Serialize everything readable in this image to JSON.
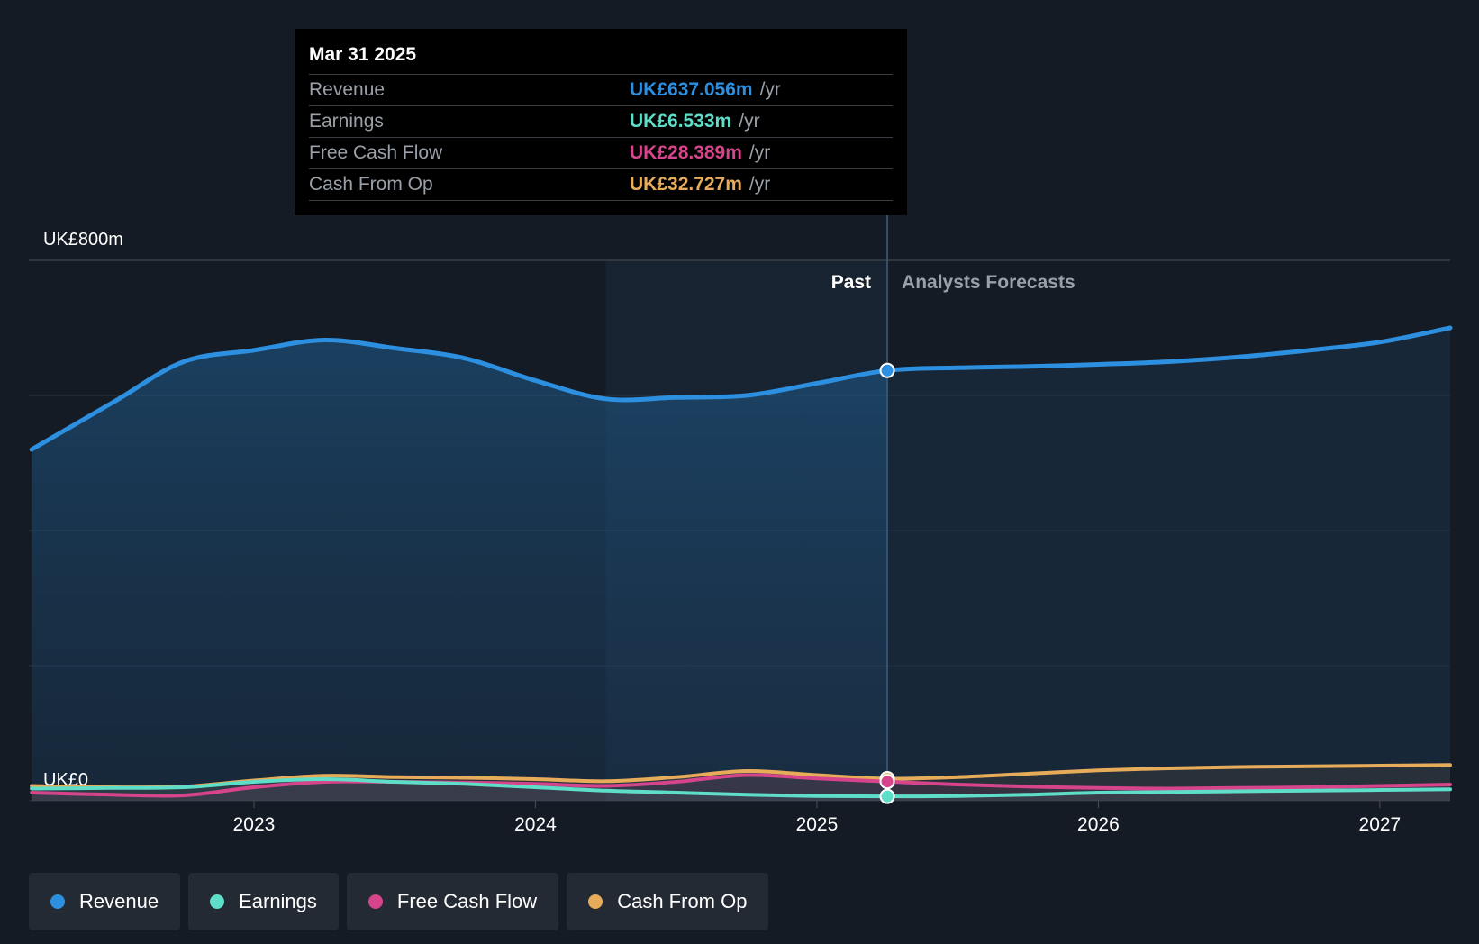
{
  "chart_data": {
    "type": "area",
    "y_labels": {
      "top": "UK£800m",
      "bottom": "UK£0"
    },
    "ylim": [
      0,
      800
    ],
    "xlim": [
      2022.2,
      2027.25
    ],
    "x_ticks": [
      {
        "value": 2023.0,
        "label": "2023"
      },
      {
        "value": 2024.0,
        "label": "2024"
      },
      {
        "value": 2025.0,
        "label": "2025"
      },
      {
        "value": 2026.0,
        "label": "2026"
      },
      {
        "value": 2027.0,
        "label": "2027"
      }
    ],
    "divider": {
      "x": 2025.25,
      "past_label": "Past",
      "forecast_label": "Analysts Forecasts",
      "highlight_start": 2024.25
    },
    "series": [
      {
        "name": "Revenue",
        "color": "#2d8fe0",
        "x": [
          2022.21,
          2022.5,
          2022.75,
          2023.0,
          2023.25,
          2023.5,
          2023.75,
          2024.0,
          2024.25,
          2024.5,
          2024.75,
          2025.0,
          2025.25,
          2025.5,
          2025.75,
          2026.0,
          2026.25,
          2026.5,
          2026.75,
          2027.0,
          2027.25
        ],
        "values": [
          520,
          590,
          650,
          667,
          682,
          670,
          655,
          622,
          595,
          597,
          600,
          618,
          637,
          641,
          643,
          646,
          650,
          657,
          667,
          679,
          700
        ]
      },
      {
        "name": "Earnings",
        "color": "#5eddc8",
        "x": [
          2022.21,
          2022.5,
          2022.75,
          2023.0,
          2023.25,
          2023.5,
          2023.75,
          2024.0,
          2024.25,
          2024.5,
          2024.75,
          2025.0,
          2025.25,
          2025.5,
          2025.75,
          2026.0,
          2026.25,
          2026.5,
          2026.75,
          2027.0,
          2027.25
        ],
        "values": [
          18,
          19,
          20,
          28,
          32,
          28,
          25,
          20,
          15,
          12,
          9,
          7,
          6.533,
          7,
          9,
          12,
          13,
          14,
          15,
          16,
          17
        ]
      },
      {
        "name": "Free Cash Flow",
        "color": "#d6458b",
        "x": [
          2022.21,
          2022.5,
          2022.75,
          2023.0,
          2023.25,
          2023.5,
          2023.75,
          2024.0,
          2024.25,
          2024.5,
          2024.75,
          2025.0,
          2025.25,
          2025.5,
          2025.75,
          2026.0,
          2026.25,
          2026.5,
          2026.75,
          2027.0,
          2027.25
        ],
        "values": [
          12,
          9,
          8,
          20,
          28,
          28,
          27,
          25,
          22,
          28,
          38,
          33,
          28.389,
          24,
          21,
          19,
          18,
          19,
          20,
          22,
          24
        ]
      },
      {
        "name": "Cash From Op",
        "color": "#e7ac5a",
        "x": [
          2022.21,
          2022.5,
          2022.75,
          2023.0,
          2023.25,
          2023.5,
          2023.75,
          2024.0,
          2024.25,
          2024.5,
          2024.75,
          2025.0,
          2025.25,
          2025.5,
          2025.75,
          2026.0,
          2026.25,
          2026.5,
          2026.75,
          2027.0,
          2027.25
        ],
        "values": [
          22,
          20,
          21,
          30,
          37,
          35,
          34,
          32,
          29,
          35,
          44,
          38,
          32.727,
          35,
          40,
          45,
          48,
          50,
          51,
          52,
          53
        ]
      }
    ]
  },
  "tooltip": {
    "date": "Mar 31 2025",
    "unit": "/yr",
    "rows": [
      {
        "label": "Revenue",
        "value": "UK£637.056m",
        "color": "#2d8fe0"
      },
      {
        "label": "Earnings",
        "value": "UK£6.533m",
        "color": "#5eddc8"
      },
      {
        "label": "Free Cash Flow",
        "value": "UK£28.389m",
        "color": "#d6458b"
      },
      {
        "label": "Cash From Op",
        "value": "UK£32.727m",
        "color": "#e7ac5a"
      }
    ]
  },
  "legend": [
    {
      "label": "Revenue",
      "color": "#2d8fe0"
    },
    {
      "label": "Earnings",
      "color": "#5eddc8"
    },
    {
      "label": "Free Cash Flow",
      "color": "#d6458b"
    },
    {
      "label": "Cash From Op",
      "color": "#e7ac5a"
    }
  ]
}
